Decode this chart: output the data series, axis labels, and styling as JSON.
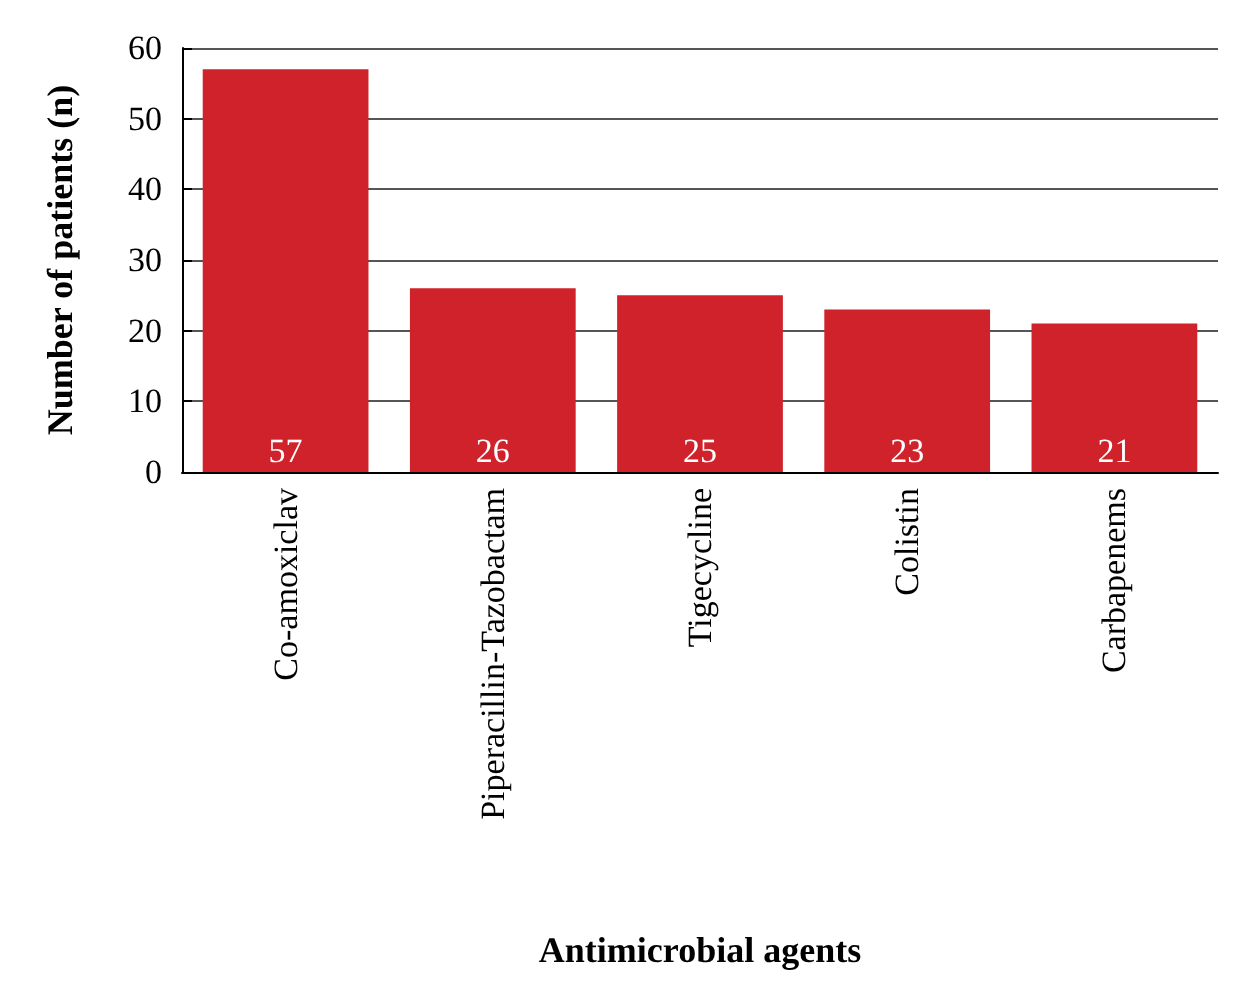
{
  "chart_data": {
    "type": "bar",
    "xlabel": "Antimicrobial agents",
    "ylabel": "Number of patients (n)",
    "categories": [
      "Co-amoxiclav",
      "Piperacillin-Tazobactam",
      "Tigecycline",
      "Colistin",
      "Carbapenems"
    ],
    "values": [
      57,
      26,
      25,
      23,
      21
    ],
    "color": "#d0222b",
    "ylim": [
      0,
      60
    ],
    "yticks": [
      0,
      10,
      20,
      30,
      40,
      50,
      60
    ],
    "grid": "y",
    "data_labels": true
  }
}
